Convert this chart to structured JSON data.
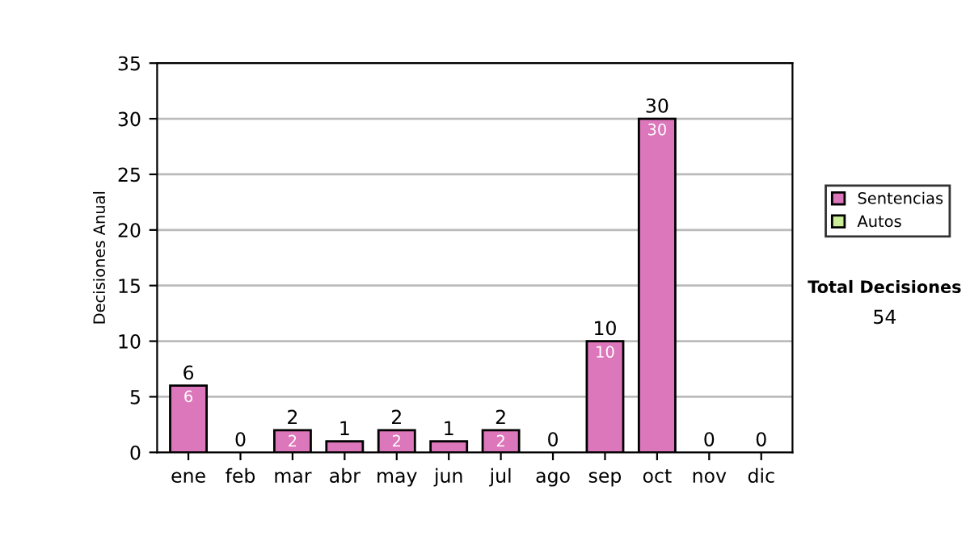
{
  "chart_data": {
    "type": "bar",
    "stacked": true,
    "ylabel": "Decisiones Anual",
    "categories": [
      "ene",
      "feb",
      "mar",
      "abr",
      "may",
      "jun",
      "jul",
      "ago",
      "sep",
      "oct",
      "nov",
      "dic"
    ],
    "series": [
      {
        "name": "Sentencias",
        "color": "#dd77bb",
        "values": [
          6,
          0,
          2,
          1,
          2,
          1,
          2,
          0,
          10,
          30,
          0,
          0
        ],
        "value_labels": [
          "6",
          null,
          "2",
          null,
          "2",
          null,
          "2",
          null,
          "10",
          "30",
          null,
          null
        ]
      },
      {
        "name": "Autos",
        "color": "#ccee99",
        "values": [
          0,
          0,
          0,
          0,
          0,
          0,
          0,
          0,
          0,
          0,
          0,
          0
        ]
      }
    ],
    "totals": [
      "6",
      "0",
      "2",
      "1",
      "2",
      "1",
      "2",
      "0",
      "10",
      "30",
      "0",
      "0"
    ],
    "ylim": [
      0,
      35
    ],
    "yticks": [
      0,
      5,
      10,
      15,
      20,
      25,
      30,
      35
    ],
    "grid": "y",
    "legend": "right",
    "annotations": [
      "Total Decisiones",
      "54"
    ]
  }
}
